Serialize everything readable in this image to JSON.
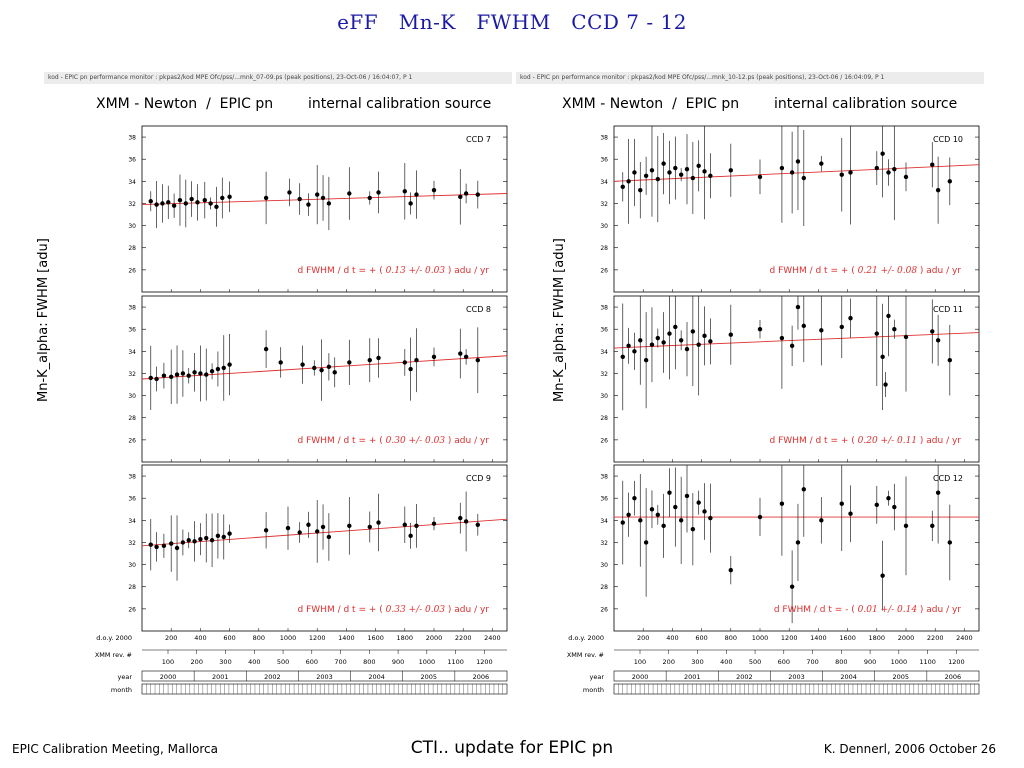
{
  "slide": {
    "title": "eFF   Mn-K   FWHM   CCD 7 - 12",
    "footer_left": "EPIC Calibration Meeting, Mallorca",
    "footer_center": "CTI.. update for EPIC pn",
    "footer_right": "K. Dennerl, 2006 October 26"
  },
  "figures": [
    {
      "header_bar": "kod - EPIC pn performance monitor : pkpas2/kod     MPE   Ofc/pss/...mnk_07-09.ps (peak positions), 23-Oct-06 / 16:04:07, P   1",
      "heading_left": "XMM - Newton  /  EPIC pn",
      "heading_right": "internal calibration source",
      "ylabel": "Mn-K_alpha:  FWHM  [adu]"
    },
    {
      "header_bar": "kod - EPIC pn performance monitor : pkpas2/kod     MPE   Ofc/pss/...mnk_10-12.ps (peak positions), 23-Oct-06 / 16:04:09, P   1",
      "heading_left": "XMM - Newton  /  EPIC pn",
      "heading_right": "internal calibration source",
      "ylabel": "Mn-K_alpha:  FWHM  [adu]"
    }
  ],
  "axis_labels": {
    "doy": "d.o.y. 2000",
    "rev": "XMM rev. #",
    "year": "year",
    "month": "month",
    "doy_ticks": [
      "200",
      "400",
      "600",
      "800",
      "1000",
      "1200",
      "1400",
      "1600",
      "1800",
      "2000",
      "2200",
      "2400"
    ],
    "rev_ticks": [
      "100",
      "200",
      "300",
      "400",
      "500",
      "600",
      "700",
      "800",
      "900",
      "1000",
      "1100",
      "1200"
    ],
    "years": [
      "2000",
      "2001",
      "2002",
      "2003",
      "2004",
      "2005",
      "2006"
    ]
  },
  "colors": {
    "fit": "#e03030",
    "title": "#1a1aa6"
  },
  "chart_data": [
    {
      "type": "scatter",
      "panel": "CCD 7",
      "title": "CCD  7",
      "xlabel": "d.o.y. 2000",
      "ylabel": "Mn-K_alpha:  FWHM  [adu]",
      "ylim": [
        24,
        39
      ],
      "yticks": [
        26,
        28,
        30,
        32,
        34,
        36,
        38
      ],
      "xlim": [
        0,
        2500
      ],
      "fit_label_pre": "d FWHM / d t  = +  (",
      "fit_value": "0.13 +/- 0.03",
      "fit_label_post": ")  adu  /  yr",
      "fit_line": {
        "x": [
          0,
          2500
        ],
        "y": [
          31.9,
          32.9
        ]
      },
      "points": [
        [
          60,
          32.2
        ],
        [
          100,
          31.9
        ],
        [
          140,
          32.0
        ],
        [
          180,
          32.1
        ],
        [
          220,
          31.8
        ],
        [
          260,
          32.3
        ],
        [
          300,
          32.0
        ],
        [
          340,
          32.4
        ],
        [
          380,
          32.1
        ],
        [
          430,
          32.3
        ],
        [
          470,
          32.0
        ],
        [
          510,
          31.7
        ],
        [
          550,
          32.5
        ],
        [
          600,
          32.6
        ],
        [
          850,
          32.5
        ],
        [
          1010,
          33.0
        ],
        [
          1080,
          32.4
        ],
        [
          1140,
          31.9
        ],
        [
          1200,
          32.8
        ],
        [
          1240,
          32.5
        ],
        [
          1280,
          32.0
        ],
        [
          1420,
          32.9
        ],
        [
          1560,
          32.5
        ],
        [
          1620,
          33.0
        ],
        [
          1800,
          33.1
        ],
        [
          1840,
          32.0
        ],
        [
          1880,
          32.8
        ],
        [
          2000,
          33.2
        ],
        [
          2180,
          32.6
        ],
        [
          2220,
          32.9
        ],
        [
          2300,
          32.8
        ]
      ]
    },
    {
      "type": "scatter",
      "panel": "CCD 8",
      "title": "CCD  8",
      "xlabel": "d.o.y. 2000",
      "ylabel": "Mn-K_alpha:  FWHM  [adu]",
      "ylim": [
        24,
        39
      ],
      "yticks": [
        26,
        28,
        30,
        32,
        34,
        36,
        38
      ],
      "xlim": [
        0,
        2500
      ],
      "fit_label_pre": "d FWHM / d t  = +  (",
      "fit_value": "0.30 +/- 0.03",
      "fit_label_post": ")  adu  /  yr",
      "fit_line": {
        "x": [
          0,
          2500
        ],
        "y": [
          31.5,
          33.6
        ]
      },
      "points": [
        [
          60,
          31.6
        ],
        [
          100,
          31.5
        ],
        [
          150,
          31.8
        ],
        [
          200,
          31.7
        ],
        [
          240,
          31.9
        ],
        [
          280,
          32.0
        ],
        [
          320,
          31.8
        ],
        [
          360,
          32.1
        ],
        [
          400,
          32.0
        ],
        [
          440,
          31.9
        ],
        [
          480,
          32.2
        ],
        [
          520,
          32.4
        ],
        [
          560,
          32.5
        ],
        [
          600,
          32.8
        ],
        [
          850,
          34.2
        ],
        [
          950,
          33.0
        ],
        [
          1100,
          32.8
        ],
        [
          1180,
          32.5
        ],
        [
          1230,
          32.3
        ],
        [
          1280,
          32.6
        ],
        [
          1320,
          32.1
        ],
        [
          1420,
          33.0
        ],
        [
          1560,
          33.2
        ],
        [
          1620,
          33.4
        ],
        [
          1800,
          33.0
        ],
        [
          1840,
          32.4
        ],
        [
          1880,
          33.2
        ],
        [
          2000,
          33.5
        ],
        [
          2180,
          33.8
        ],
        [
          2220,
          33.5
        ],
        [
          2300,
          33.2
        ]
      ]
    },
    {
      "type": "scatter",
      "panel": "CCD 9",
      "title": "CCD  9",
      "xlabel": "d.o.y. 2000",
      "ylabel": "Mn-K_alpha:  FWHM  [adu]",
      "ylim": [
        24,
        39
      ],
      "yticks": [
        26,
        28,
        30,
        32,
        34,
        36,
        38
      ],
      "xlim": [
        0,
        2500
      ],
      "fit_label_pre": "d FWHM / d t  = +  (",
      "fit_value": "0.33 +/- 0.03",
      "fit_label_post": ")  adu  /  yr",
      "fit_line": {
        "x": [
          0,
          2500
        ],
        "y": [
          31.7,
          34.1
        ]
      },
      "points": [
        [
          60,
          31.8
        ],
        [
          100,
          31.6
        ],
        [
          150,
          31.7
        ],
        [
          200,
          31.9
        ],
        [
          240,
          31.5
        ],
        [
          280,
          32.0
        ],
        [
          320,
          32.2
        ],
        [
          360,
          32.1
        ],
        [
          400,
          32.3
        ],
        [
          440,
          32.4
        ],
        [
          480,
          32.2
        ],
        [
          520,
          32.6
        ],
        [
          560,
          32.5
        ],
        [
          600,
          32.8
        ],
        [
          850,
          33.1
        ],
        [
          1000,
          33.3
        ],
        [
          1080,
          32.9
        ],
        [
          1140,
          33.6
        ],
        [
          1200,
          33.0
        ],
        [
          1240,
          33.4
        ],
        [
          1280,
          32.5
        ],
        [
          1420,
          33.5
        ],
        [
          1560,
          33.4
        ],
        [
          1620,
          33.8
        ],
        [
          1800,
          33.6
        ],
        [
          1840,
          32.6
        ],
        [
          1880,
          33.5
        ],
        [
          2000,
          33.7
        ],
        [
          2180,
          34.2
        ],
        [
          2220,
          33.9
        ],
        [
          2300,
          33.6
        ]
      ]
    },
    {
      "type": "scatter",
      "panel": "CCD 10",
      "title": "CCD  10",
      "xlabel": "d.o.y. 2000",
      "ylabel": "Mn-K_alpha:  FWHM  [adu]",
      "ylim": [
        24,
        39
      ],
      "yticks": [
        26,
        28,
        30,
        32,
        34,
        36,
        38
      ],
      "xlim": [
        0,
        2500
      ],
      "fit_label_pre": "d FWHM / d t  = +  (",
      "fit_value": "0.21 +/- 0.08",
      "fit_label_post": ")  adu  /  yr",
      "fit_line": {
        "x": [
          0,
          2500
        ],
        "y": [
          34.0,
          35.5
        ]
      },
      "points": [
        [
          60,
          33.5
        ],
        [
          100,
          34.0
        ],
        [
          140,
          34.8
        ],
        [
          180,
          33.2
        ],
        [
          220,
          34.5
        ],
        [
          260,
          35.0
        ],
        [
          300,
          34.2
        ],
        [
          340,
          35.6
        ],
        [
          380,
          34.8
        ],
        [
          420,
          35.2
        ],
        [
          460,
          34.6
        ],
        [
          500,
          35.1
        ],
        [
          540,
          34.3
        ],
        [
          580,
          35.4
        ],
        [
          620,
          34.9
        ],
        [
          660,
          34.5
        ],
        [
          800,
          35.0
        ],
        [
          1000,
          34.4
        ],
        [
          1150,
          35.2
        ],
        [
          1220,
          34.8
        ],
        [
          1260,
          35.8
        ],
        [
          1300,
          34.3
        ],
        [
          1420,
          35.6
        ],
        [
          1560,
          34.6
        ],
        [
          1620,
          34.8
        ],
        [
          1800,
          35.2
        ],
        [
          1840,
          36.5
        ],
        [
          1880,
          34.8
        ],
        [
          1920,
          35.1
        ],
        [
          2000,
          34.4
        ],
        [
          2180,
          35.5
        ],
        [
          2220,
          33.2
        ],
        [
          2300,
          34.0
        ]
      ]
    },
    {
      "type": "scatter",
      "panel": "CCD 11",
      "title": "CCD  11",
      "xlabel": "d.o.y. 2000",
      "ylabel": "Mn-K_alpha:  FWHM  [adu]",
      "ylim": [
        24,
        39
      ],
      "yticks": [
        26,
        28,
        30,
        32,
        34,
        36,
        38
      ],
      "xlim": [
        0,
        2500
      ],
      "fit_label_pre": "d FWHM / d t  = +  (",
      "fit_value": "0.20 +/- 0.11",
      "fit_label_post": ")  adu  /  yr",
      "fit_line": {
        "x": [
          0,
          2500
        ],
        "y": [
          34.3,
          35.7
        ]
      },
      "points": [
        [
          60,
          33.5
        ],
        [
          100,
          34.5
        ],
        [
          140,
          34.0
        ],
        [
          180,
          35.0
        ],
        [
          220,
          33.2
        ],
        [
          260,
          34.6
        ],
        [
          300,
          35.2
        ],
        [
          340,
          34.8
        ],
        [
          380,
          35.6
        ],
        [
          420,
          36.2
        ],
        [
          460,
          35.0
        ],
        [
          500,
          34.2
        ],
        [
          540,
          35.8
        ],
        [
          580,
          34.6
        ],
        [
          620,
          35.4
        ],
        [
          660,
          34.9
        ],
        [
          800,
          35.5
        ],
        [
          1000,
          36.0
        ],
        [
          1150,
          35.2
        ],
        [
          1220,
          34.5
        ],
        [
          1260,
          38.0
        ],
        [
          1300,
          36.3
        ],
        [
          1420,
          35.9
        ],
        [
          1560,
          36.2
        ],
        [
          1620,
          37.0
        ],
        [
          1800,
          35.6
        ],
        [
          1840,
          33.5
        ],
        [
          1860,
          31.0
        ],
        [
          1880,
          37.2
        ],
        [
          1920,
          36.0
        ],
        [
          2000,
          35.3
        ],
        [
          2180,
          35.8
        ],
        [
          2220,
          35.0
        ],
        [
          2300,
          33.2
        ]
      ]
    },
    {
      "type": "scatter",
      "panel": "CCD 12",
      "title": "CCD  12",
      "xlabel": "d.o.y. 2000",
      "ylabel": "Mn-K_alpha:  FWHM  [adu]",
      "ylim": [
        24,
        39
      ],
      "yticks": [
        26,
        28,
        30,
        32,
        34,
        36,
        38
      ],
      "xlim": [
        0,
        2500
      ],
      "fit_label_pre": "d FWHM / d t  = -  (",
      "fit_value": "0.01 +/- 0.14",
      "fit_label_post": ")  adu  /  yr",
      "fit_line": {
        "x": [
          0,
          2500
        ],
        "y": [
          34.3,
          34.3
        ]
      },
      "points": [
        [
          60,
          33.8
        ],
        [
          100,
          34.5
        ],
        [
          140,
          36.0
        ],
        [
          180,
          34.0
        ],
        [
          220,
          32.0
        ],
        [
          260,
          35.0
        ],
        [
          300,
          34.5
        ],
        [
          340,
          33.5
        ],
        [
          380,
          36.5
        ],
        [
          420,
          35.2
        ],
        [
          460,
          34.0
        ],
        [
          500,
          36.2
        ],
        [
          540,
          33.2
        ],
        [
          580,
          35.6
        ],
        [
          620,
          34.8
        ],
        [
          660,
          34.2
        ],
        [
          800,
          29.5
        ],
        [
          1000,
          34.3
        ],
        [
          1150,
          35.5
        ],
        [
          1220,
          28.0
        ],
        [
          1260,
          32.0
        ],
        [
          1300,
          36.8
        ],
        [
          1420,
          34.0
        ],
        [
          1560,
          35.5
        ],
        [
          1620,
          34.6
        ],
        [
          1800,
          35.4
        ],
        [
          1840,
          29.0
        ],
        [
          1880,
          36.0
        ],
        [
          1920,
          35.2
        ],
        [
          2000,
          33.5
        ],
        [
          2180,
          33.5
        ],
        [
          2220,
          36.5
        ],
        [
          2300,
          32.0
        ]
      ]
    }
  ]
}
